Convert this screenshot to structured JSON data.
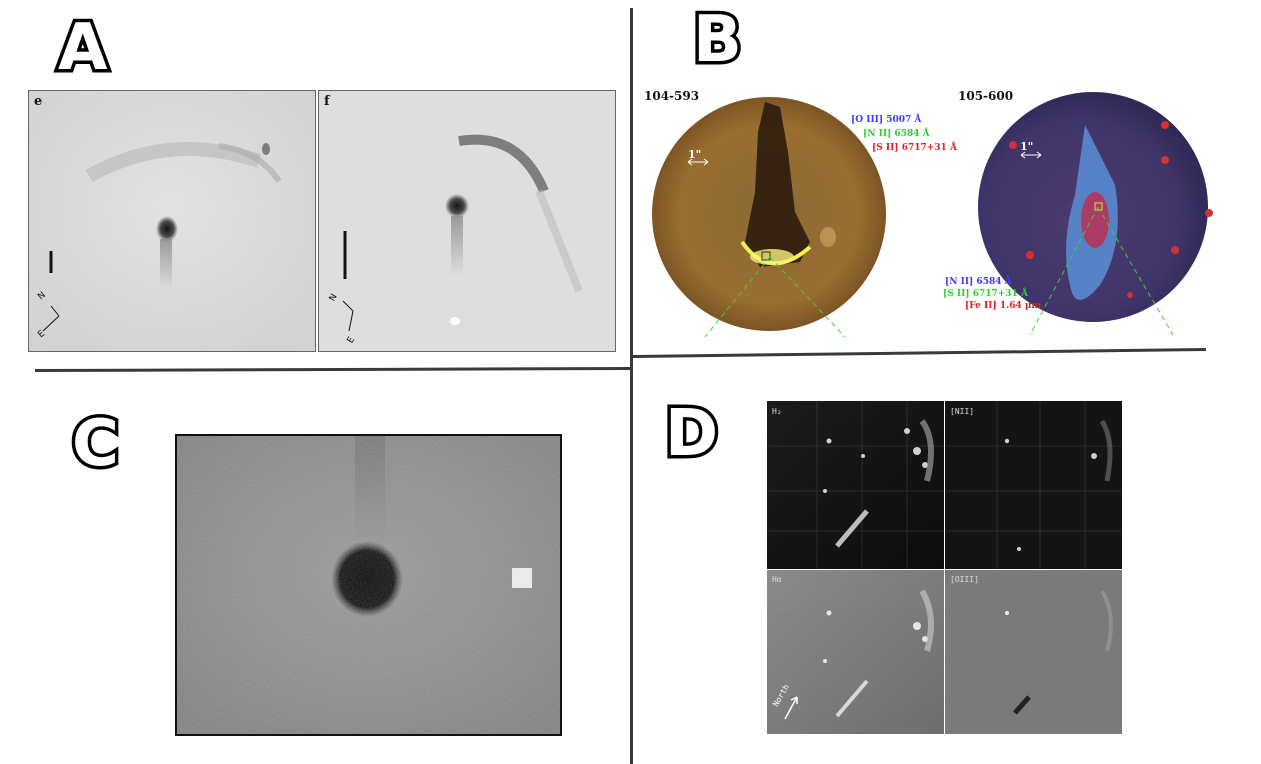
{
  "quadrants": {
    "a": {
      "letter": "A",
      "panels": [
        {
          "label": "e"
        },
        {
          "label": "f"
        }
      ]
    },
    "b": {
      "letter": "B",
      "left": {
        "id": "104-593",
        "scale": "1\"",
        "lines": [
          {
            "text": "[O III] 5007 Å",
            "color": "#3a3aff"
          },
          {
            "text": "[N II] 6584 Å",
            "color": "#33cc33"
          },
          {
            "text": "[S II] 6717+31 Å",
            "color": "#dd2222"
          }
        ]
      },
      "right": {
        "id": "105-600",
        "scale": "1\"",
        "lines": [
          {
            "text": "[N II] 6584 Å",
            "color": "#3a3aff"
          },
          {
            "text": "[S II] 6717+31 Å",
            "color": "#33cc33"
          },
          {
            "text": "[Fe II] 1.64 μm",
            "color": "#dd2222"
          }
        ]
      }
    },
    "c": {
      "letter": "C"
    },
    "d": {
      "letter": "D",
      "panels": [
        {
          "label": "H₂"
        },
        {
          "label": "[NII]"
        },
        {
          "label": "Hα"
        },
        {
          "label": "[OIII]"
        }
      ],
      "north_label": "North"
    }
  }
}
